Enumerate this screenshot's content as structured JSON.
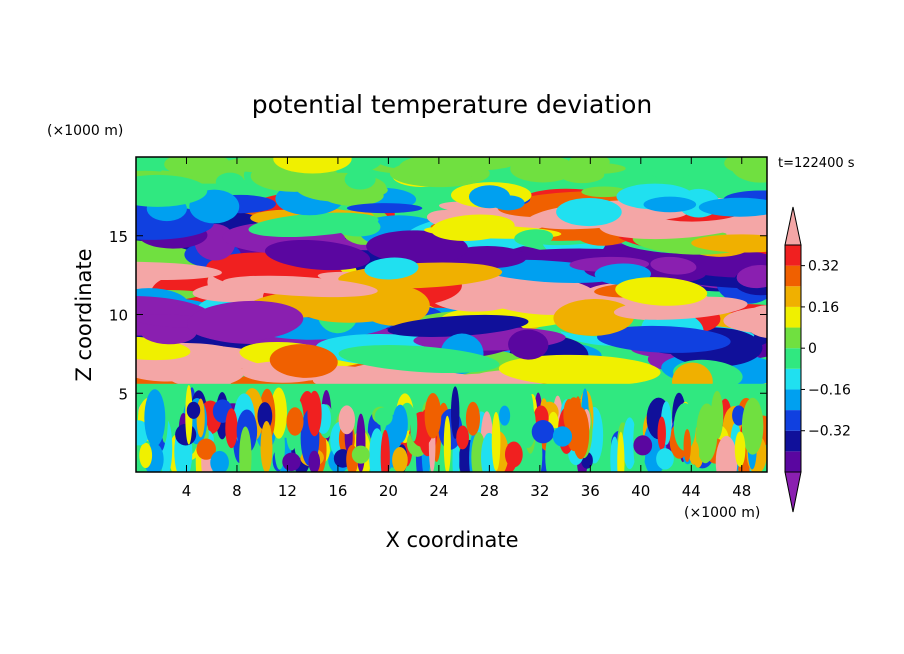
{
  "chart_data": {
    "type": "heatmap",
    "title": "potential temperature deviation",
    "xlabel": "X coordinate",
    "ylabel": "Z coordinate",
    "x_unit": "(×1000 m)",
    "y_unit": "(×1000 m)",
    "time_label": "t=122400 s",
    "xlim": [
      0,
      50
    ],
    "ylim": [
      0,
      20
    ],
    "x_ticks": [
      4,
      8,
      12,
      16,
      20,
      24,
      28,
      32,
      36,
      40,
      44,
      48
    ],
    "y_ticks": [
      5,
      10,
      15
    ],
    "colorbar": {
      "levels": [
        -0.48,
        -0.4,
        -0.32,
        -0.24,
        -0.16,
        -0.08,
        0,
        0.08,
        0.16,
        0.24,
        0.32,
        0.4
      ],
      "colors": [
        "#8a1fb0",
        "#5a06a0",
        "#10109a",
        "#1040e0",
        "#00a0f0",
        "#20e0f0",
        "#30e880",
        "#70e040",
        "#f0f000",
        "#f0b000",
        "#f06000",
        "#f02020",
        "#f4a6a6"
      ],
      "tick_labels": [
        "0.32",
        "0.16",
        "0",
        "−0.16",
        "−0.32"
      ],
      "tick_values": [
        0.32,
        0.16,
        0,
        -0.16,
        -0.32
      ],
      "extend": "both"
    },
    "field_description": "layered banded structures: alternating positive (pink/red) and negative (purple/blue) lenses between z≈5 and z≈17; near-neutral green band near z≈5; turbulent mixed layer below z≈4"
  }
}
